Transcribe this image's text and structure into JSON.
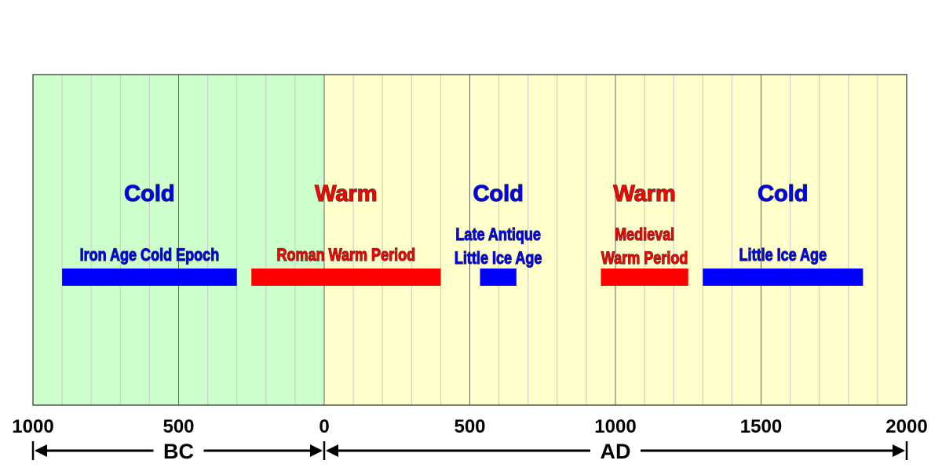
{
  "chart_data": {
    "type": "timeline",
    "xlim": [
      -1000,
      2000
    ],
    "ticks": [
      {
        "value": -1000,
        "label": "1000"
      },
      {
        "value": -500,
        "label": "500"
      },
      {
        "value": 0,
        "label": "0"
      },
      {
        "value": 500,
        "label": "500"
      },
      {
        "value": 1000,
        "label": "1000"
      },
      {
        "value": 1500,
        "label": "1500"
      },
      {
        "value": 2000,
        "label": "2000"
      }
    ],
    "minor_grid_step": 100,
    "grid": true,
    "eras": [
      {
        "label": "BC",
        "start": -1000,
        "end": 0,
        "background": "#ccffcc"
      },
      {
        "label": "AD",
        "start": 0,
        "end": 2000,
        "background": "#ffffcc"
      }
    ],
    "periods": [
      {
        "climate": "Cold",
        "name": [
          "Iron Age Cold Epoch"
        ],
        "start": -900,
        "end": -300,
        "color": "#0000ff"
      },
      {
        "climate": "Warm",
        "name": [
          "Roman Warm Period"
        ],
        "start": -250,
        "end": 400,
        "color": "#ff0000"
      },
      {
        "climate": "Cold",
        "name": [
          "Late Antique",
          "Little Ice Age"
        ],
        "start": 535,
        "end": 660,
        "color": "#0000ff"
      },
      {
        "climate": "Warm",
        "name": [
          "Medieval",
          "Warm Period"
        ],
        "start": 950,
        "end": 1250,
        "color": "#ff0000"
      },
      {
        "climate": "Cold",
        "name": [
          "Little Ice Age"
        ],
        "start": 1300,
        "end": 1850,
        "color": "#0000ff"
      }
    ]
  }
}
